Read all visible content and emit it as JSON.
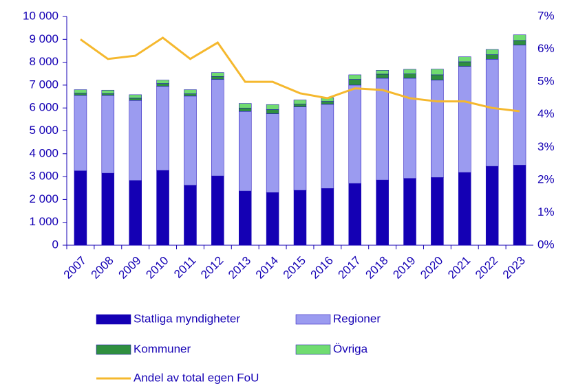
{
  "chart_data": {
    "type": "bar",
    "stacked": true,
    "categories": [
      "2007",
      "2008",
      "2009",
      "2010",
      "2011",
      "2012",
      "2013",
      "2014",
      "2015",
      "2016",
      "2017",
      "2018",
      "2019",
      "2020",
      "2021",
      "2022",
      "2023"
    ],
    "series": [
      {
        "name": "Statliga myndigheter",
        "color": "#1400b4",
        "values": [
          3250,
          3150,
          2830,
          3270,
          2620,
          3030,
          2370,
          2300,
          2400,
          2480,
          2700,
          2850,
          2920,
          2960,
          3180,
          3450,
          3500
        ]
      },
      {
        "name": "Regioner",
        "color": "#9b9bf0",
        "values": [
          3300,
          3400,
          3500,
          3680,
          3900,
          4220,
          3480,
          3450,
          3650,
          3680,
          4300,
          4450,
          4380,
          4260,
          4640,
          4680,
          5250
        ]
      },
      {
        "name": "Kommuner",
        "color": "#2f8f3f",
        "values": [
          100,
          80,
          100,
          120,
          100,
          130,
          150,
          180,
          120,
          130,
          250,
          180,
          190,
          230,
          200,
          200,
          200
        ]
      },
      {
        "name": "Övriga",
        "color": "#70dc70",
        "values": [
          150,
          150,
          150,
          150,
          180,
          170,
          200,
          220,
          180,
          160,
          200,
          170,
          200,
          250,
          220,
          230,
          250
        ]
      },
      {
        "name": "Andel av total egen FoU",
        "color": "#f5b82e",
        "type": "line",
        "axis": "y2",
        "values": [
          6.3,
          5.7,
          5.8,
          6.35,
          5.7,
          6.2,
          5.0,
          5.0,
          4.65,
          4.5,
          4.8,
          4.75,
          4.5,
          4.4,
          4.4,
          4.2,
          4.1
        ]
      }
    ],
    "ylim": [
      0,
      10000
    ],
    "yticks": [
      0,
      {
        "value": 1000,
        "label": "1 000"
      },
      {
        "value": 2000,
        "label": "2 000"
      },
      {
        "value": 3000,
        "label": "3 000"
      },
      {
        "value": 4000,
        "label": "4 000"
      },
      {
        "value": 5000,
        "label": "5 000"
      },
      {
        "value": 6000,
        "label": "6 000"
      },
      {
        "value": 7000,
        "label": "7 000"
      },
      {
        "value": 8000,
        "label": "8 000"
      },
      {
        "value": 9000,
        "label": "9 000"
      },
      {
        "value": 10000,
        "label": "10 000"
      }
    ],
    "y2lim": [
      0,
      7
    ],
    "y2ticks": [
      {
        "value": 0,
        "label": "0%"
      },
      {
        "value": 1,
        "label": "1%"
      },
      {
        "value": 2,
        "label": "2%"
      },
      {
        "value": 3,
        "label": "3%"
      },
      {
        "value": 4,
        "label": "4%"
      },
      {
        "value": 5,
        "label": "5%"
      },
      {
        "value": 6,
        "label": "6%"
      },
      {
        "value": 7,
        "label": "7%"
      }
    ],
    "legend": "bottom",
    "grid": false
  }
}
